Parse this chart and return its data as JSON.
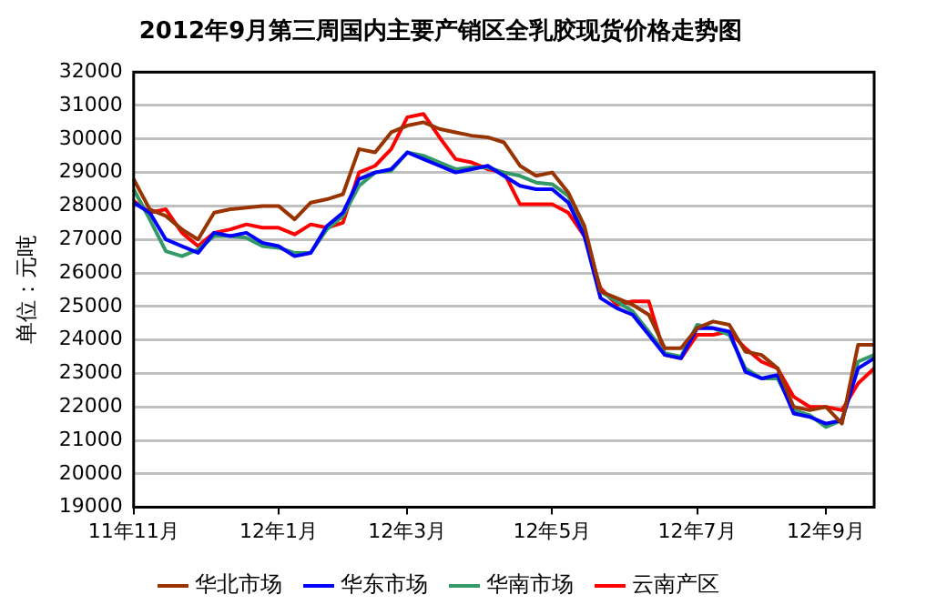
{
  "chart_data": {
    "type": "line",
    "title": "2012年9月第三周国内主要产销区全乳胶现货价格走势图",
    "ylabel": "单位：元吨",
    "categories": [
      "11年11月",
      null,
      null,
      null,
      null,
      null,
      null,
      null,
      null,
      "12年1月",
      null,
      null,
      null,
      null,
      null,
      null,
      null,
      "12年3月",
      null,
      null,
      null,
      null,
      null,
      null,
      null,
      null,
      "12年5月",
      null,
      null,
      null,
      null,
      null,
      null,
      null,
      null,
      "12年7月",
      null,
      null,
      null,
      null,
      null,
      null,
      null,
      "12年9月",
      null,
      null,
      null
    ],
    "ylim": [
      19000,
      32000
    ],
    "yticks": [
      19000,
      20000,
      21000,
      22000,
      23000,
      24000,
      25000,
      26000,
      27000,
      28000,
      29000,
      30000,
      31000,
      32000
    ],
    "grid": "y",
    "legend": "bottom",
    "marker": "none",
    "line_style": "solid",
    "series": [
      {
        "name": "华北市场",
        "color": "#993300",
        "values": [
          28800,
          27900,
          27700,
          27300,
          27000,
          27800,
          27900,
          27950,
          28000,
          28000,
          27600,
          28100,
          28200,
          28350,
          29700,
          29600,
          30200,
          30400,
          30500,
          30300,
          30200,
          30100,
          30050,
          29900,
          29200,
          28900,
          29000,
          28400,
          27400,
          25450,
          25250,
          25050,
          24750,
          23750,
          23750,
          24350,
          24550,
          24450,
          23650,
          23550,
          23150,
          22000,
          21900,
          22000,
          21500,
          23850,
          23850
        ]
      },
      {
        "name": "华东市场",
        "color": "#0000ff",
        "values": [
          28100,
          27800,
          27000,
          26800,
          26600,
          27200,
          27100,
          27200,
          26900,
          26800,
          26500,
          26600,
          27400,
          27800,
          28800,
          29000,
          29100,
          29600,
          29400,
          29200,
          29000,
          29100,
          29200,
          28900,
          28600,
          28500,
          28500,
          28100,
          27100,
          25250,
          24950,
          24750,
          24150,
          23550,
          23450,
          24350,
          24350,
          24250,
          23050,
          22850,
          22950,
          21800,
          21700,
          21500,
          21600,
          23150,
          23450
        ]
      },
      {
        "name": "华南市场",
        "color": "#339966",
        "values": [
          28500,
          27600,
          26650,
          26500,
          26700,
          27100,
          27100,
          27050,
          26800,
          26750,
          26600,
          26600,
          27300,
          27700,
          28600,
          29000,
          29050,
          29600,
          29500,
          29300,
          29100,
          29150,
          29150,
          29000,
          28900,
          28700,
          28650,
          28300,
          27300,
          25450,
          25150,
          24850,
          24250,
          23600,
          23500,
          24450,
          24350,
          24150,
          23150,
          22850,
          22850,
          21900,
          21750,
          21400,
          21600,
          23350,
          23550
        ]
      },
      {
        "name": "云南产区",
        "color": "#ff0000",
        "values": [
          28150,
          27800,
          27900,
          27200,
          26800,
          27200,
          27300,
          27450,
          27350,
          27350,
          27150,
          27450,
          27350,
          27500,
          29000,
          29200,
          29700,
          30650,
          30750,
          30050,
          29400,
          29300,
          29100,
          29000,
          28050,
          28050,
          28050,
          27800,
          27100,
          25550,
          25050,
          25150,
          25150,
          23550,
          23450,
          24150,
          24150,
          24250,
          23750,
          23350,
          23150,
          22300,
          22000,
          22000,
          21900,
          22700,
          23150
        ]
      }
    ]
  }
}
